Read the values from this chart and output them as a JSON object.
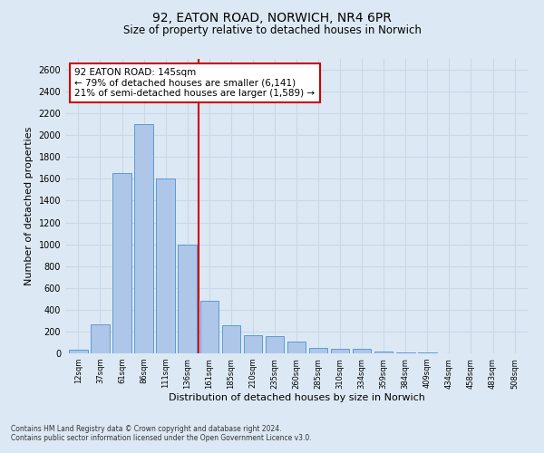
{
  "title_line1": "92, EATON ROAD, NORWICH, NR4 6PR",
  "title_line2": "Size of property relative to detached houses in Norwich",
  "xlabel": "Distribution of detached houses by size in Norwich",
  "ylabel": "Number of detached properties",
  "categories": [
    "12sqm",
    "37sqm",
    "61sqm",
    "86sqm",
    "111sqm",
    "136sqm",
    "161sqm",
    "185sqm",
    "210sqm",
    "235sqm",
    "260sqm",
    "285sqm",
    "310sqm",
    "334sqm",
    "359sqm",
    "384sqm",
    "409sqm",
    "434sqm",
    "458sqm",
    "483sqm",
    "508sqm"
  ],
  "values": [
    30,
    270,
    1650,
    2100,
    1600,
    1000,
    480,
    260,
    165,
    155,
    110,
    50,
    45,
    40,
    15,
    10,
    5,
    3,
    3,
    1,
    1
  ],
  "bar_color": "#aec6e8",
  "bar_edge_color": "#5b9bd5",
  "vline_x": 6,
  "vline_color": "#cc0000",
  "annotation_text": "92 EATON ROAD: 145sqm\n← 79% of detached houses are smaller (6,141)\n21% of semi-detached houses are larger (1,589) →",
  "annotation_box_color": "#ffffff",
  "annotation_box_edge_color": "#cc0000",
  "grid_color": "#c8d8e8",
  "background_color": "#dce9f5",
  "plot_bg_color": "#dce9f5",
  "ylim": [
    0,
    2700
  ],
  "yticks": [
    0,
    200,
    400,
    600,
    800,
    1000,
    1200,
    1400,
    1600,
    1800,
    2000,
    2200,
    2400,
    2600
  ],
  "footnote1": "Contains HM Land Registry data © Crown copyright and database right 2024.",
  "footnote2": "Contains public sector information licensed under the Open Government Licence v3.0."
}
